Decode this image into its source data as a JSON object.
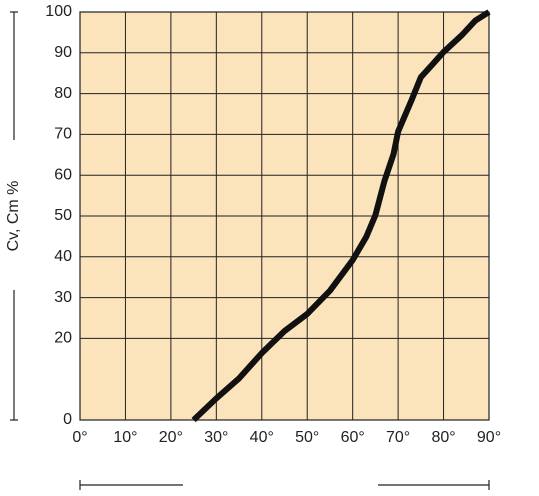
{
  "chart_data": {
    "type": "line",
    "ylabel": "Cv, Cm %",
    "x": [
      25,
      30,
      35,
      40,
      45,
      50,
      55,
      60,
      63,
      65,
      67,
      69,
      70,
      73,
      75,
      78,
      80,
      84,
      87,
      90
    ],
    "series": [
      {
        "color": "#111111",
        "values": [
          0,
          5.3,
          10.2,
          16.4,
          21.8,
          26,
          31.7,
          39.2,
          44.9,
          50.2,
          58.6,
          65.2,
          70.7,
          78.5,
          84,
          87.7,
          90.2,
          94.3,
          97.9,
          100
        ]
      }
    ],
    "xlim": [
      0,
      90
    ],
    "xticks": [
      {
        "value": 0,
        "label": "0°"
      },
      {
        "value": 10,
        "label": "10°"
      },
      {
        "value": 20,
        "label": "20°"
      },
      {
        "value": 30,
        "label": "30°"
      },
      {
        "value": 40,
        "label": "40°"
      },
      {
        "value": 50,
        "label": "50°"
      },
      {
        "value": 60,
        "label": "60°"
      },
      {
        "value": 70,
        "label": "70°"
      },
      {
        "value": 80,
        "label": "80°"
      },
      {
        "value": 90,
        "label": "90°"
      }
    ],
    "ylim": [
      0,
      100
    ],
    "yticks": [
      0,
      20,
      30,
      40,
      50,
      60,
      70,
      80,
      90,
      100
    ],
    "grid": true,
    "background": "#fbe3bb"
  }
}
